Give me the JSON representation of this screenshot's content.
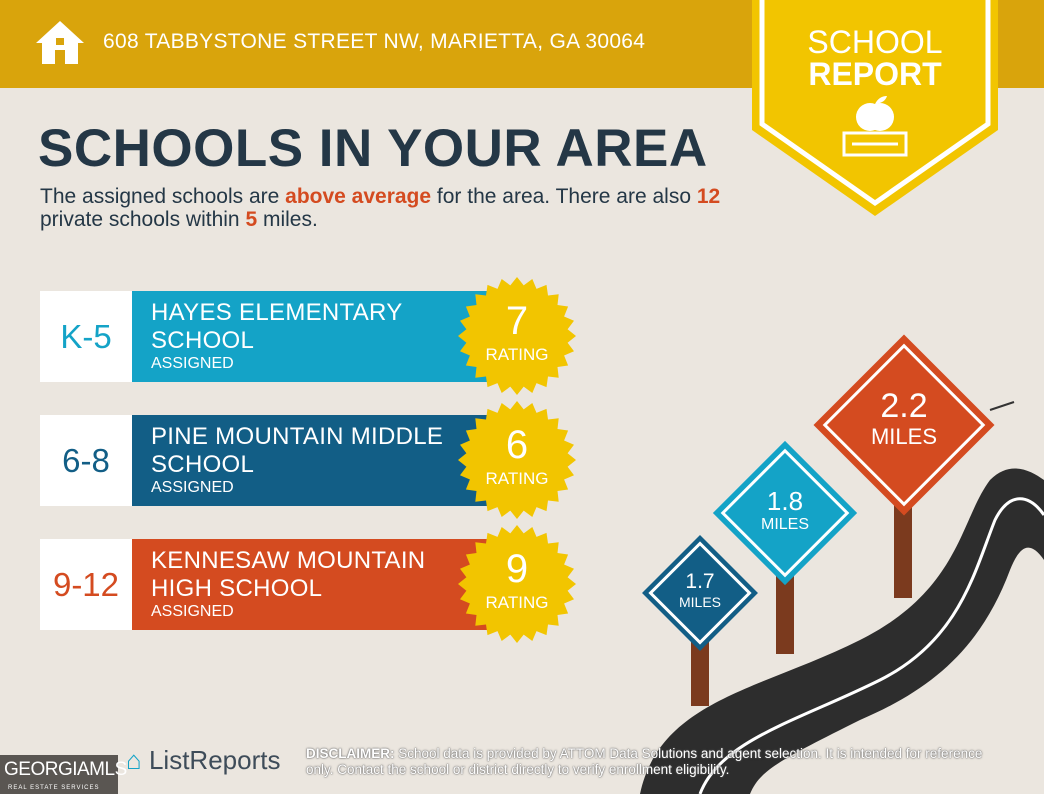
{
  "header": {
    "address": "608 TABBYSTONE STREET NW, MARIETTA, GA 30064",
    "icon": "home-icon"
  },
  "badge": {
    "line1": "SCHOOL",
    "line2": "REPORT",
    "icon": "apple-book-icon"
  },
  "main": {
    "title": "SCHOOLS IN YOUR AREA",
    "subtitle": {
      "p1": "The assigned schools are ",
      "highlight1": "above average",
      "p2": " for the area. There are also ",
      "count": "12",
      "p3": " private schools within ",
      "radius": "5",
      "p4": " miles."
    }
  },
  "schools": [
    {
      "grades": "K-5",
      "name_line1": "HAYES ELEMENTARY",
      "name_line2": "SCHOOL",
      "status": "ASSIGNED",
      "rating": "7",
      "rating_label": "RATING",
      "color": "#14a3c7"
    },
    {
      "grades": "6-8",
      "name_line1": "PINE MOUNTAIN MIDDLE",
      "name_line2": "SCHOOL",
      "status": "ASSIGNED",
      "rating": "6",
      "rating_label": "RATING",
      "color": "#125e86"
    },
    {
      "grades": "9-12",
      "name_line1": "KENNESAW MOUNTAIN",
      "name_line2": "HIGH SCHOOL",
      "status": "ASSIGNED",
      "rating": "9",
      "rating_label": "RATING",
      "color": "#d44b20"
    }
  ],
  "distances": [
    {
      "value": "1.7",
      "unit": "MILES"
    },
    {
      "value": "1.8",
      "unit": "MILES"
    },
    {
      "value": "2.2",
      "unit": "MILES"
    }
  ],
  "footer": {
    "brand": "ListReports",
    "disclaimer_label": "DISCLAIMER:",
    "disclaimer": " School data is provided by ATTOM Data Solutions and agent selection. It is intended for reference only. Contact the school or district directly to verify enrollment eligibility.",
    "mls_name": "GEORGIAMLS",
    "mls_sub": "REAL ESTATE SERVICES"
  },
  "colors": {
    "header": "#d9a40c",
    "badge": "#f2c500",
    "teal": "#14a3c7",
    "navy": "#125e86",
    "orange": "#d44b20",
    "text": "#243746"
  }
}
